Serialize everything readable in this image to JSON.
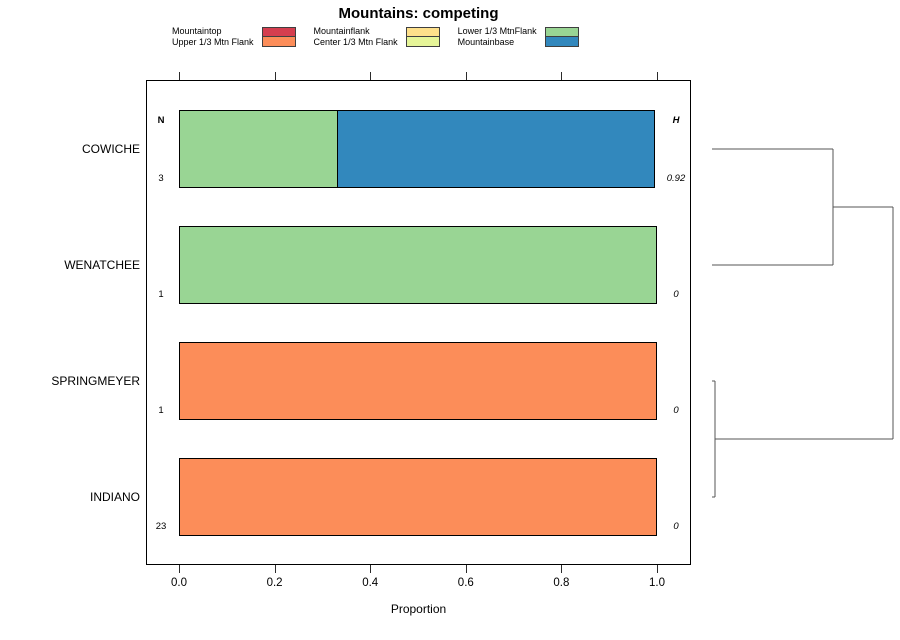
{
  "title": "Mountains: competing",
  "legend": {
    "columns": [
      [
        {
          "label": "Mountaintop",
          "color": "#D53E4F"
        },
        {
          "label": "Upper 1/3 Mtn Flank",
          "color": "#FC8D59"
        }
      ],
      [
        {
          "label": "Mountainflank",
          "color": "#FEE08B"
        },
        {
          "label": "Center 1/3 Mtn Flank",
          "color": "#E6F598"
        }
      ],
      [
        {
          "label": "Lower 1/3 MtnFlank",
          "color": "#99D594"
        },
        {
          "label": "Mountainbase",
          "color": "#3288BD"
        }
      ]
    ]
  },
  "chart_data": {
    "type": "bar",
    "orientation": "horizontal",
    "stacked": true,
    "title": "Mountains: competing",
    "xlabel": "Proportion",
    "xlim": [
      0,
      1
    ],
    "x_ticks": [
      {
        "value": 0.0,
        "label": "0.0"
      },
      {
        "value": 0.2,
        "label": "0.2"
      },
      {
        "value": 0.4,
        "label": "0.4"
      },
      {
        "value": 0.6,
        "label": "0.6"
      },
      {
        "value": 0.8,
        "label": "0.8"
      },
      {
        "value": 1.0,
        "label": "1.0"
      }
    ],
    "n_header": "N",
    "h_header": "H",
    "rows": [
      {
        "label": "COWICHE",
        "n": "3",
        "h": "0.92",
        "segments": [
          {
            "category": "Lower 1/3 MtnFlank",
            "value": 0.333,
            "color": "#99D594"
          },
          {
            "category": "Mountainbase",
            "value": 0.667,
            "color": "#3288BD"
          }
        ]
      },
      {
        "label": "WENATCHEE",
        "n": "1",
        "h": "0",
        "segments": [
          {
            "category": "Lower 1/3 MtnFlank",
            "value": 1.0,
            "color": "#99D594"
          }
        ]
      },
      {
        "label": "SPRINGMEYER",
        "n": "1",
        "h": "0",
        "segments": [
          {
            "category": "Upper 1/3 Mtn Flank",
            "value": 1.0,
            "color": "#FC8D59"
          }
        ]
      },
      {
        "label": "INDIANO",
        "n": "23",
        "h": "0",
        "segments": [
          {
            "category": "Upper 1/3 Mtn Flank",
            "value": 1.0,
            "color": "#FC8D59"
          }
        ]
      }
    ],
    "dendrogram": {
      "legend_note": "agglomerative cluster tree over rows",
      "merges": [
        {
          "children": [
            "SPRINGMEYER",
            "INDIANO"
          ],
          "height": 0.017
        },
        {
          "children": [
            "COWICHE",
            "WENATCHEE"
          ],
          "height": 0.669
        },
        {
          "children": [
            "merge1",
            "merge0"
          ],
          "height": 1.0
        }
      ]
    }
  }
}
